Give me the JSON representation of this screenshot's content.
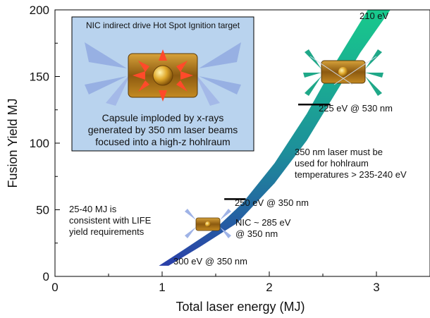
{
  "chart_data": {
    "type": "area",
    "title": "",
    "xlabel": "Total laser energy (MJ)",
    "ylabel": "Fusion Yield MJ",
    "xlim": [
      0,
      3.5
    ],
    "ylim": [
      0,
      200
    ],
    "x_ticks": [
      0,
      1,
      2,
      3
    ],
    "y_ticks": [
      0,
      50,
      100,
      150,
      200
    ],
    "x_tick_labels": [
      "0",
      "1",
      "2",
      "3"
    ],
    "y_tick_labels": [
      "0",
      "50",
      "100",
      "150",
      "200"
    ],
    "grid": false,
    "colors": {
      "band_low": "#2a3fa8",
      "band_mid": "#1d8f9a",
      "band_high": "#18c98c",
      "marker_line": "#000000",
      "inset_bg": "#b9d3ee"
    },
    "band": {
      "upper": [
        [
          0.97,
          8
        ],
        [
          1.2,
          20
        ],
        [
          1.5,
          36
        ],
        [
          1.75,
          55
        ],
        [
          2.05,
          85
        ],
        [
          2.35,
          122
        ],
        [
          2.6,
          158
        ],
        [
          2.92,
          200
        ]
      ],
      "lower": [
        [
          1.06,
          8
        ],
        [
          1.35,
          22
        ],
        [
          1.7,
          40
        ],
        [
          2.05,
          70
        ],
        [
          2.35,
          102
        ],
        [
          2.6,
          135
        ],
        [
          2.85,
          168
        ],
        [
          3.13,
          200
        ]
      ]
    },
    "markers": [
      {
        "x1": 1.58,
        "x2": 1.78,
        "y": 58,
        "label": "250 eV @ 350 nm"
      },
      {
        "x1": 2.27,
        "x2": 2.57,
        "y": 129,
        "label": "225 eV @ 530 nm"
      }
    ],
    "annotations": {
      "top_label": "210 eV",
      "bottom_label": "300 eV @ 350 nm",
      "nic": [
        "NIC ~ 285 eV",
        "@ 350 nm"
      ],
      "laser_note": [
        "350 nm laser must be",
        "used for hohlraum",
        "temperatures > 235-240 eV"
      ],
      "life_note": [
        "25-40 MJ is",
        "consistent with LIFE",
        "yield requirements"
      ]
    },
    "inset": {
      "title": "NIC indirect drive Hot Spot Ignition target",
      "caption": [
        "Capsule imploded by x-rays",
        "generated by 350 nm laser beams",
        "focused into a high-z hohlraum"
      ]
    }
  }
}
